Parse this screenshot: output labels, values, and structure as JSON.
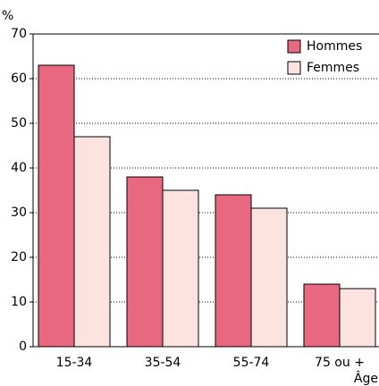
{
  "chart_data": {
    "type": "bar",
    "y_axis_label": "%",
    "x_axis_label": "Âge",
    "categories": [
      "15-34",
      "35-54",
      "55-74",
      "75 ou +"
    ],
    "series": [
      {
        "name": "Hommes",
        "color": "#e8697f",
        "values": [
          63,
          38,
          34,
          14
        ]
      },
      {
        "name": "Femmes",
        "color": "#fde3df",
        "values": [
          47,
          35,
          31,
          13
        ]
      }
    ],
    "ylim": [
      0,
      70
    ],
    "yticks": [
      0,
      10,
      20,
      30,
      40,
      50,
      60,
      70
    ],
    "grid": true,
    "legend": "upper right"
  }
}
